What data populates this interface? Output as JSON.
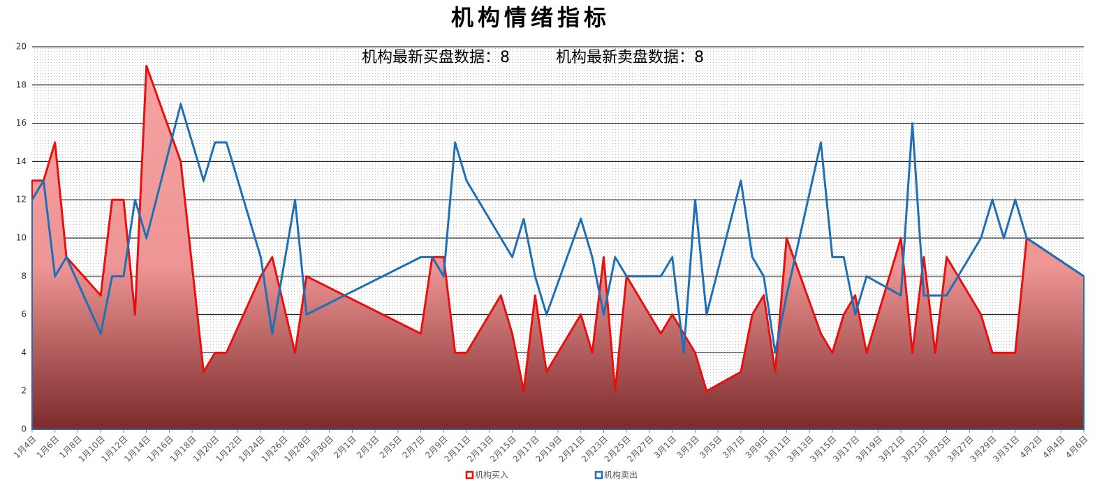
{
  "chart_data": {
    "type": "area",
    "title": "机构情绪指标",
    "annotations": [
      "机构最新买盘数据：8",
      "机构最新卖盘数据：8"
    ],
    "x": [
      "1月4日",
      "1月5日",
      "1月6日",
      "1月7日",
      "1月10日",
      "1月11日",
      "1月12日",
      "1月13日",
      "1月14日",
      "1月17日",
      "1月19日",
      "1月20日",
      "1月21日",
      "1月24日",
      "1月25日",
      "1月27日",
      "1月28日",
      "2月7日",
      "2月8日",
      "2月9日",
      "2月10日",
      "2月11日",
      "2月14日",
      "2月15日",
      "2月16日",
      "2月17日",
      "2月18日",
      "2月21日",
      "2月22日",
      "2月23日",
      "2月24日",
      "2月25日",
      "2月28日",
      "3月1日",
      "3月2日",
      "3月3日",
      "3月4日",
      "3月7日",
      "3月8日",
      "3月9日",
      "3月10日",
      "3月11日",
      "3月14日",
      "3月15日",
      "3月16日",
      "3月17日",
      "3月18日",
      "3月21日",
      "3月22日",
      "3月23日",
      "3月24日",
      "3月25日",
      "3月28日",
      "3月29日",
      "3月30日",
      "3月31日",
      "4月1日",
      "4月6日"
    ],
    "series": [
      {
        "name": "机构买入",
        "color": "#e8100f",
        "values": [
          13,
          13,
          15,
          9,
          7,
          12,
          12,
          6,
          19,
          14,
          3,
          4,
          4,
          8,
          9,
          4,
          8,
          5,
          9,
          9,
          4,
          4,
          7,
          5,
          2,
          7,
          3,
          6,
          4,
          9,
          2,
          8,
          5,
          6,
          5,
          4,
          2,
          3,
          6,
          7,
          3,
          10,
          5,
          4,
          6,
          7,
          4,
          10,
          4,
          9,
          4,
          9,
          6,
          4,
          4,
          4,
          10,
          8
        ]
      },
      {
        "name": "机构卖出",
        "color": "#1f6fb5",
        "values": [
          12,
          13,
          8,
          9,
          5,
          8,
          8,
          12,
          10,
          17,
          13,
          15,
          15,
          9,
          5,
          12,
          6,
          9,
          9,
          8,
          15,
          13,
          10,
          9,
          11,
          8,
          6,
          11,
          9,
          6,
          9,
          8,
          8,
          9,
          4,
          12,
          6,
          13,
          9,
          8,
          4,
          7,
          15,
          9,
          9,
          6,
          8,
          7,
          16,
          7,
          7,
          7,
          10,
          12,
          10,
          12,
          10,
          8
        ]
      }
    ],
    "xlim": [
      "1月4日",
      "4月6日"
    ],
    "xticks": [
      "1月4日",
      "1月6日",
      "1月8日",
      "1月10日",
      "1月12日",
      "1月14日",
      "1月16日",
      "1月18日",
      "1月20日",
      "1月22日",
      "1月24日",
      "1月26日",
      "1月28日",
      "1月30日",
      "2月1日",
      "2月3日",
      "2月5日",
      "2月7日",
      "2月9日",
      "2月11日",
      "2月13日",
      "2月15日",
      "2月17日",
      "2月19日",
      "2月21日",
      "2月23日",
      "2月25日",
      "2月27日",
      "3月1日",
      "3月3日",
      "3月5日",
      "3月7日",
      "3月9日",
      "3月11日",
      "3月13日",
      "3月15日",
      "3月17日",
      "3月19日",
      "3月21日",
      "3月23日",
      "3月25日",
      "3月27日",
      "3月29日",
      "3月31日",
      "4月2日",
      "4月4日",
      "4月6日"
    ],
    "ylim": [
      0,
      20
    ],
    "yticks": [
      0,
      2,
      4,
      6,
      8,
      10,
      12,
      14,
      16,
      18,
      20
    ],
    "grid": true,
    "legend": "bottom"
  }
}
